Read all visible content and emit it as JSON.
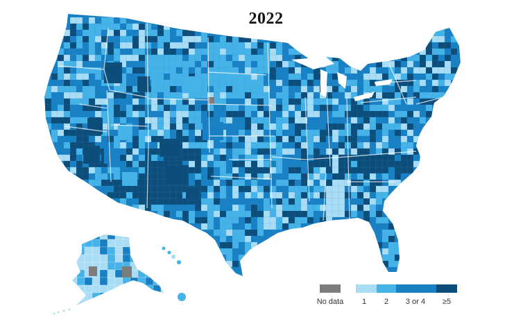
{
  "title": "2022",
  "legend": {
    "no_data": {
      "label": "No data",
      "color": "#7d7d7d"
    },
    "bins": [
      {
        "label": "1",
        "color": "#a9dcf5"
      },
      {
        "label": "2",
        "color": "#45b3e8"
      },
      {
        "label": "3 or 4",
        "color": "#1a80c4"
      },
      {
        "label": "≥5",
        "color": "#0d4d7a"
      }
    ]
  },
  "map": {
    "level": "counties",
    "region": "United States",
    "state_outline_color": "#ffffff"
  }
}
